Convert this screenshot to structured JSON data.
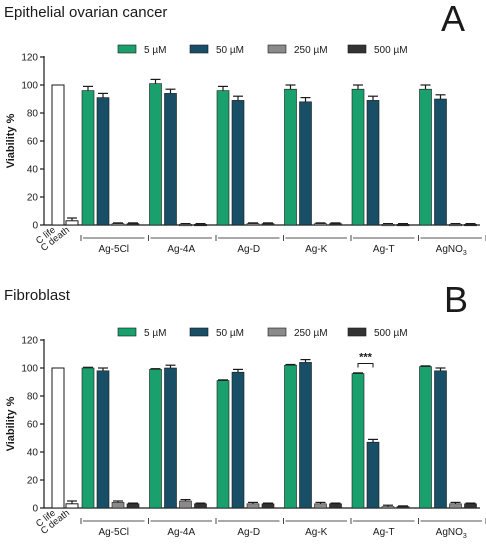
{
  "chart_data": [
    {
      "type": "bar",
      "title": "Epithelial ovarian cancer",
      "panel_label": "A",
      "ylabel": "Viability %",
      "ylim": [
        0,
        120
      ],
      "yticks": [
        0,
        20,
        40,
        60,
        80,
        100,
        120
      ],
      "controls": [
        {
          "label": "C life",
          "value": 100,
          "error": 0
        },
        {
          "label": "C death",
          "value": 3,
          "error": 2
        }
      ],
      "categories": [
        "Ag-5Cl",
        "Ag-4A",
        "Ag-D",
        "Ag-K",
        "Ag-T",
        "AgNO3"
      ],
      "series": [
        {
          "name": "5 µM",
          "color": "#1aa06d",
          "values": [
            96,
            101,
            96,
            97,
            97,
            97
          ],
          "errors": [
            3,
            4,
            3,
            2,
            6,
            1.5
          ]
        },
        {
          "name": "50 µM",
          "color": "#184f66",
          "values": [
            91,
            94,
            89,
            88,
            89,
            90
          ],
          "errors": [
            1,
            3,
            1.5,
            0.5,
            1.5,
            2
          ]
        },
        {
          "name": "250 µM",
          "color": "#8a8a8a",
          "values": [
            1,
            0.5,
            1,
            1,
            0.5,
            0.5
          ],
          "errors": [
            0.5,
            0.3,
            0.5,
            0.5,
            0.2,
            0.3
          ]
        },
        {
          "name": "500 µM",
          "color": "#333333",
          "values": [
            1,
            0.5,
            1,
            1,
            0.5,
            0.5
          ],
          "errors": [
            0.5,
            0.3,
            0.5,
            0.5,
            0.2,
            0.3
          ]
        }
      ],
      "annotations": []
    },
    {
      "type": "bar",
      "title": "Fibroblast",
      "panel_label": "B",
      "ylabel": "Viability %",
      "ylim": [
        0,
        120
      ],
      "yticks": [
        0,
        20,
        40,
        60,
        80,
        100,
        120
      ],
      "controls": [
        {
          "label": "C life",
          "value": 100,
          "error": 0
        },
        {
          "label": "C death",
          "value": 3,
          "error": 2
        }
      ],
      "categories": [
        "Ag-5Cl",
        "Ag-4A",
        "Ag-D",
        "Ag-K",
        "Ag-T",
        "AgNO3"
      ],
      "series": [
        {
          "name": "5 µM",
          "color": "#1aa06d",
          "values": [
            100,
            99,
            91,
            102,
            96,
            101
          ],
          "errors": [
            0.5,
            1,
            4,
            2,
            1.5,
            0.5
          ]
        },
        {
          "name": "50 µM",
          "color": "#184f66",
          "values": [
            98,
            100,
            97,
            104,
            47,
            98
          ],
          "errors": [
            2,
            2,
            2,
            1,
            22,
            0.5
          ]
        },
        {
          "name": "250 µM",
          "color": "#8a8a8a",
          "values": [
            4,
            5,
            3,
            3,
            1,
            3
          ],
          "errors": [
            1,
            3,
            1,
            0.5,
            0.3,
            1
          ]
        },
        {
          "name": "500 µM",
          "color": "#333333",
          "values": [
            3,
            3,
            3,
            3,
            1,
            3
          ],
          "errors": [
            0.5,
            0.5,
            0.5,
            0.5,
            0.3,
            1
          ]
        }
      ],
      "annotations": [
        {
          "text": "***",
          "category": "Ag-T",
          "between": [
            "5 µM",
            "50 µM"
          ]
        }
      ]
    }
  ]
}
